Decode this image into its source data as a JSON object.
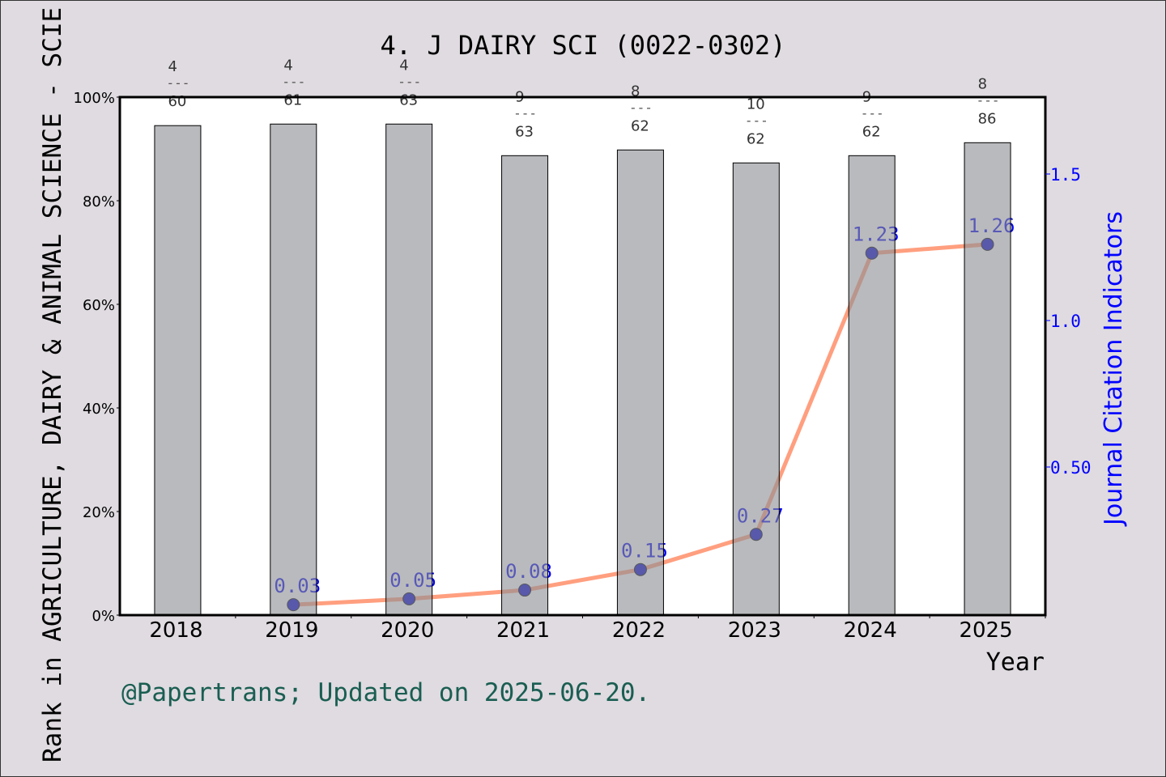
{
  "chart_data": {
    "type": "bar+line",
    "title": "4. J DAIRY SCI (0022-0302)",
    "xlabel": "Year",
    "ylabel_left": "Rank in AGRICULTURE, DAIRY & ANIMAL SCIENCE - SCIE",
    "ylabel_right": "Journal Citation Indicators",
    "categories": [
      "2018",
      "2019",
      "2020",
      "2021",
      "2022",
      "2023",
      "2024",
      "2025"
    ],
    "left_axis": {
      "ticks": [
        "0%",
        "20%",
        "40%",
        "60%",
        "80%",
        "100%"
      ],
      "range": [
        0,
        100
      ]
    },
    "right_axis": {
      "ticks": [
        "0.50",
        "1.0",
        "1.5"
      ],
      "range": [
        0,
        1.77
      ]
    },
    "bars": {
      "values": [
        94.5,
        94.8,
        94.8,
        88.7,
        89.8,
        87.3,
        88.7,
        91.2
      ],
      "rank_labels": [
        {
          "rank": "4",
          "total": "60"
        },
        {
          "rank": "4",
          "total": "61"
        },
        {
          "rank": "4",
          "total": "63"
        },
        {
          "rank": "9",
          "total": "63"
        },
        {
          "rank": "8",
          "total": "62"
        },
        {
          "rank": "10",
          "total": "62"
        },
        {
          "rank": "9",
          "total": "62"
        },
        {
          "rank": "8",
          "total": "86"
        }
      ],
      "separator": "---",
      "color": "#b8b9bb"
    },
    "line": {
      "values": [
        null,
        0.03,
        0.05,
        0.08,
        0.15,
        0.27,
        1.23,
        1.26
      ],
      "labels": [
        null,
        "0.03",
        "0.05",
        "0.08",
        "0.15",
        "0.27",
        "1.23",
        "1.26"
      ],
      "color": "#ff9f7f",
      "marker_color": "#0000cc"
    },
    "grid": false,
    "footer": "@Papertrans; Updated on 2025-06-20."
  }
}
